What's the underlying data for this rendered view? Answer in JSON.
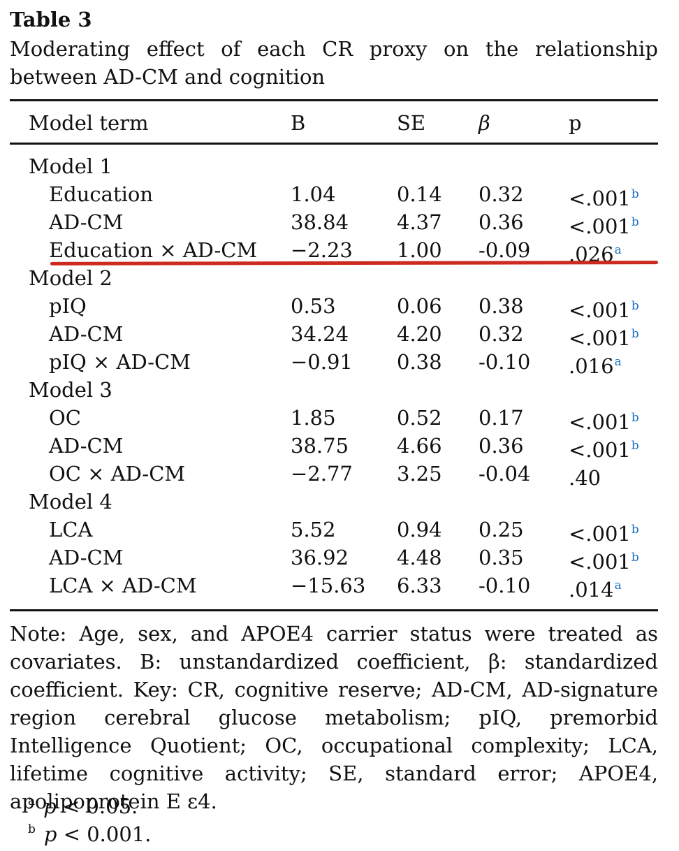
{
  "table": {
    "title": "Table 3",
    "caption": "Moderating effect of each CR proxy on the relationship between AD-CM and cognition",
    "headers": [
      "Model term",
      "B",
      "SE",
      "β",
      "p"
    ],
    "groups": [
      {
        "label": "Model 1",
        "rows": [
          {
            "term": "Education",
            "b": "1.04",
            "se": "0.14",
            "beta": "0.32",
            "p": "<.001",
            "sig": "b"
          },
          {
            "term": "AD-CM",
            "b": "38.84",
            "se": "4.37",
            "beta": "0.36",
            "p": "<.001",
            "sig": "b"
          },
          {
            "term": "Education × AD-CM",
            "b": "−2.23",
            "se": "1.00",
            "beta": "-0.09",
            "p": ".026",
            "sig": "a"
          }
        ]
      },
      {
        "label": "Model 2",
        "rows": [
          {
            "term": "pIQ",
            "b": "0.53",
            "se": "0.06",
            "beta": "0.38",
            "p": "<.001",
            "sig": "b"
          },
          {
            "term": "AD-CM",
            "b": "34.24",
            "se": "4.20",
            "beta": "0.32",
            "p": "<.001",
            "sig": "b"
          },
          {
            "term": "pIQ × AD-CM",
            "b": "−0.91",
            "se": "0.38",
            "beta": "-0.10",
            "p": ".016",
            "sig": "a"
          }
        ]
      },
      {
        "label": "Model 3",
        "rows": [
          {
            "term": "OC",
            "b": "1.85",
            "se": "0.52",
            "beta": "0.17",
            "p": "<.001",
            "sig": "b"
          },
          {
            "term": "AD-CM",
            "b": "38.75",
            "se": "4.66",
            "beta": "0.36",
            "p": "<.001",
            "sig": "b"
          },
          {
            "term": "OC × AD-CM",
            "b": "−2.77",
            "se": "3.25",
            "beta": "-0.04",
            "p": ".40",
            "sig": ""
          }
        ]
      },
      {
        "label": "Model 4",
        "rows": [
          {
            "term": "LCA",
            "b": "5.52",
            "se": "0.94",
            "beta": "0.25",
            "p": "<.001",
            "sig": "b"
          },
          {
            "term": "AD-CM",
            "b": "36.92",
            "se": "4.48",
            "beta": "0.35",
            "p": "<.001",
            "sig": "b"
          },
          {
            "term": "LCA × AD-CM",
            "b": "−15.63",
            "se": "6.33",
            "beta": "-0.10",
            "p": ".014",
            "sig": "a"
          }
        ]
      }
    ],
    "note": "Note: Age, sex, and APOE4 carrier status were treated as covariates. B: unstandardized coefficient, β: standardized coefficient. Key: CR, cognitive reserve; AD-CM, AD-signature region cerebral glucose metabolism; pIQ, premorbid Intelligence Quotient; OC, occupational complexity; LCA, lifetime cognitive activity; SE, standard error; APOE4, apolipoprotein E ε4.",
    "footnotes": [
      {
        "mark": "a",
        "symbol": "p",
        "text": "< 0.05."
      },
      {
        "mark": "b",
        "symbol": "p",
        "text": "< 0.001."
      }
    ]
  },
  "colors": {
    "highlight": "#cc2a1f",
    "superscript": "#1a6fc1"
  }
}
